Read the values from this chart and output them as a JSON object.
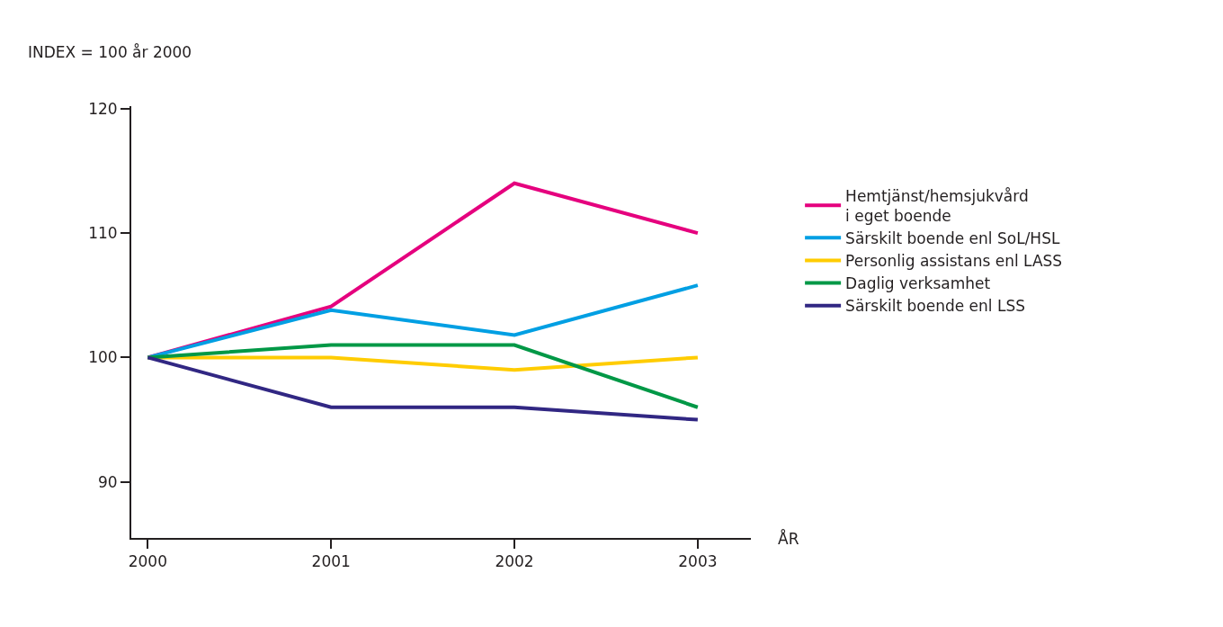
{
  "chart_data": {
    "type": "line",
    "ylabel": "INDEX = 100 år 2000",
    "xlabel": "ÅR",
    "x": [
      2000,
      2001,
      2002,
      2003
    ],
    "series": [
      {
        "name": "Hemtjänst/hemsjukvård\ni eget boende",
        "color": "#e5007e",
        "values": [
          100,
          104.1,
          114,
          110
        ]
      },
      {
        "name": "Särskilt boende enl SoL/HSL",
        "color": "#009fe3",
        "values": [
          100,
          103.8,
          101.8,
          105.8
        ]
      },
      {
        "name": "Personlig assistans enl LASS",
        "color": "#ffcc00",
        "values": [
          100,
          100,
          99,
          100
        ]
      },
      {
        "name": "Daglig verksamhet",
        "color": "#009846",
        "values": [
          100,
          101,
          101,
          96
        ]
      },
      {
        "name": "Särskilt boende enl LSS",
        "color": "#312783",
        "values": [
          100,
          96,
          96,
          95
        ]
      }
    ],
    "xlim": [
      1999.91,
      2003.29
    ],
    "xticks": [
      2000,
      2001,
      2002,
      2003
    ],
    "ylim": [
      85.5,
      120.2
    ],
    "yticks": [
      90,
      100,
      110,
      120
    ],
    "legend": "right",
    "marker": "none",
    "line_style": "solid"
  }
}
